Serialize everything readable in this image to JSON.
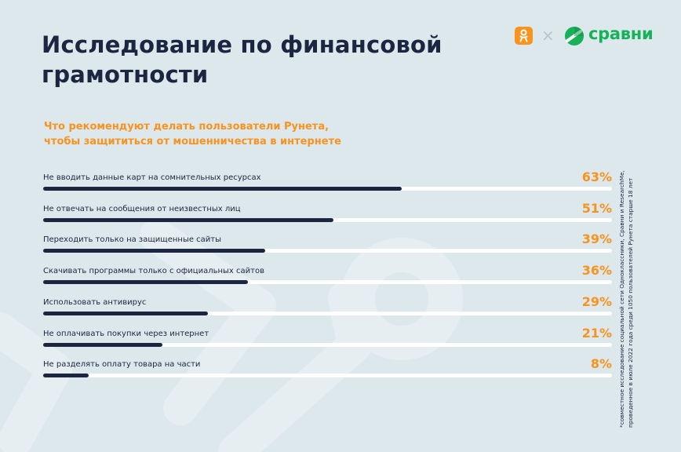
{
  "colors": {
    "background": "#dde8ec",
    "title": "#1c2640",
    "accent": "#f7931e",
    "bar": "#1c2640",
    "track": "#ffffff",
    "sravni_green": "#16b159"
  },
  "header": {
    "title": "Исследование по финансовой грамотности",
    "logos": {
      "partner_icon": "odnoklassniki-icon",
      "separator": "×",
      "brand_icon": "sravni-logo-icon",
      "brand_text": "сравни"
    }
  },
  "chart_data": {
    "type": "bar",
    "orientation": "horizontal",
    "title": "Что рекомендуют делать пользователи Рунета,\nчтобы защититься  от мошенничества в интернете",
    "unit": "%",
    "xlim": [
      0,
      100
    ],
    "categories": [
      "Не вводить данные карт на сомнительных ресурсах",
      "Не отвечать на сообщения от неизвестных лиц",
      "Переходить только на защищенные сайты",
      "Скачивать программы только с официальных сайтов",
      "Использовать антивирус",
      "Не оплачивать покупки через интернет",
      "Не разделять оплату товара на части"
    ],
    "values": [
      63,
      51,
      39,
      36,
      29,
      21,
      8
    ],
    "labels": [
      "63%",
      "51%",
      "39%",
      "36%",
      "29%",
      "21%",
      "8%"
    ]
  },
  "footnote": "*совместное исследование социальной сети Одноклассники, Сравни и ResearchMe,\nпроведенное в июле 2022 года среди 1050 пользователей Рунета старше 18 лет"
}
